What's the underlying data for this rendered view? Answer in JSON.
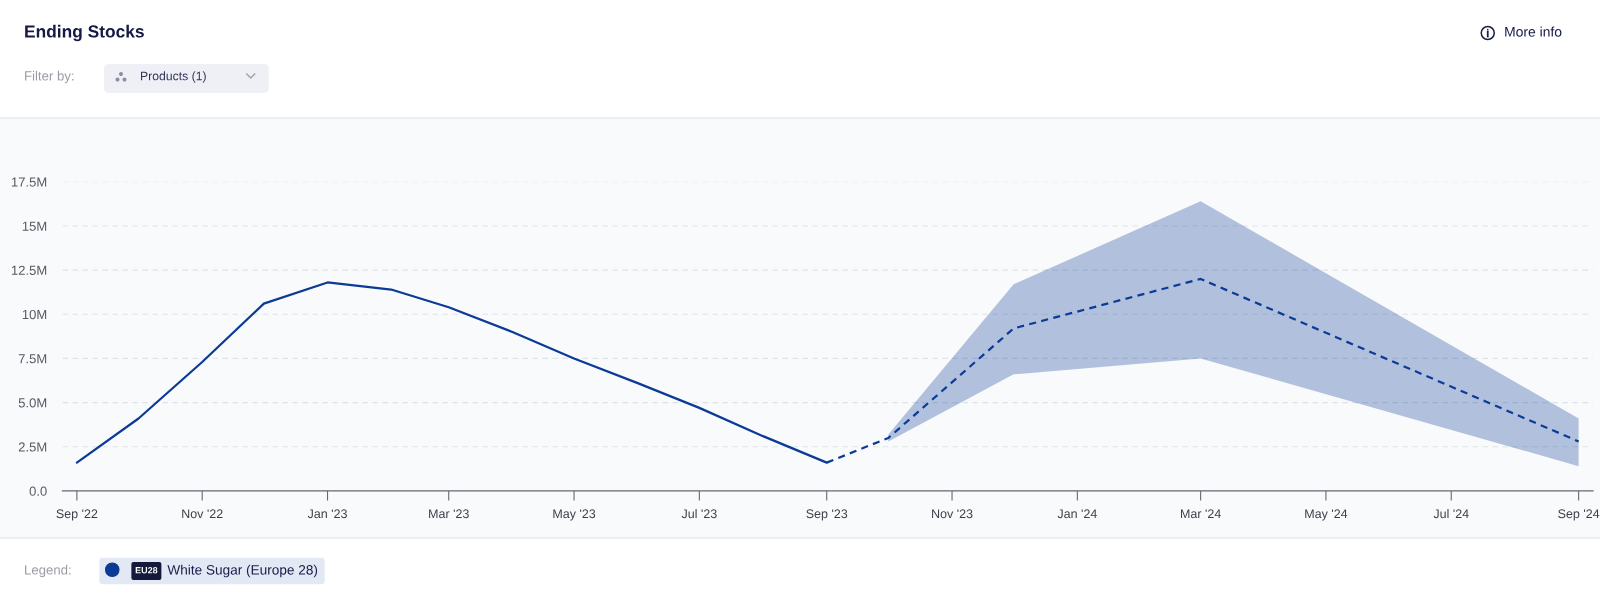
{
  "chart_data": {
    "type": "line",
    "title": "Ending Stocks",
    "legend_title": "Legend:",
    "annotations": [
      "Filter by:",
      "Products (1)",
      "More info",
      "EU28"
    ],
    "xlim": [
      "2022-08-25",
      "2024-09-08"
    ],
    "xticks": [
      {
        "value": "2022-09",
        "label": "Sep '22"
      },
      {
        "value": "2022-11",
        "label": "Nov '22"
      },
      {
        "value": "2023-01",
        "label": "Jan '23"
      },
      {
        "value": "2023-03",
        "label": "Mar '23"
      },
      {
        "value": "2023-05",
        "label": "May '23"
      },
      {
        "value": "2023-07",
        "label": "Jul '23"
      },
      {
        "value": "2023-09",
        "label": "Sep '23"
      },
      {
        "value": "2023-11",
        "label": "Nov '23"
      },
      {
        "value": "2024-01",
        "label": "Jan '24"
      },
      {
        "value": "2024-03",
        "label": "Mar '24"
      },
      {
        "value": "2024-05",
        "label": "May '24"
      },
      {
        "value": "2024-07",
        "label": "Jul '24"
      },
      {
        "value": "2024-09",
        "label": "Sep '24"
      }
    ],
    "ylim": [
      0,
      17.5
    ],
    "yticks": [
      {
        "value": 0,
        "label": "0.0"
      },
      {
        "value": 2.5,
        "label": "2.5M"
      },
      {
        "value": 5,
        "label": "5.0M"
      },
      {
        "value": 7.5,
        "label": "7.5M"
      },
      {
        "value": 10,
        "label": "10M"
      },
      {
        "value": 12.5,
        "label": "12.5M"
      },
      {
        "value": 15,
        "label": "15M"
      },
      {
        "value": 17.5,
        "label": "17.5M"
      }
    ],
    "grid": "y",
    "legend": "bottom left",
    "line_style": "solid",
    "series": [
      {
        "name": "White Sugar (Europe 28)",
        "color": "#0b3b97",
        "x": [
          "2022-09",
          "2022-10",
          "2022-11",
          "2022-12",
          "2023-01",
          "2023-02",
          "2023-03",
          "2023-04",
          "2023-05",
          "2023-06",
          "2023-07",
          "2023-08",
          "2023-09"
        ],
        "values": [
          1.6,
          4.1,
          7.3,
          10.6,
          11.8,
          11.4,
          10.4,
          9.0,
          7.5,
          6.1,
          4.7,
          3.1,
          1.6
        ]
      },
      {
        "color": "#0b3b97",
        "line_style": "dashed",
        "x": [
          "2023-09",
          "2023-10",
          "2023-12",
          "2024-03",
          "2024-09"
        ],
        "values": [
          1.6,
          3.0,
          9.2,
          12.0,
          2.8
        ],
        "lower": [
          null,
          2.8,
          6.6,
          7.5,
          1.4
        ],
        "upper": [
          null,
          3.2,
          11.7,
          16.4,
          4.1
        ]
      }
    ]
  }
}
